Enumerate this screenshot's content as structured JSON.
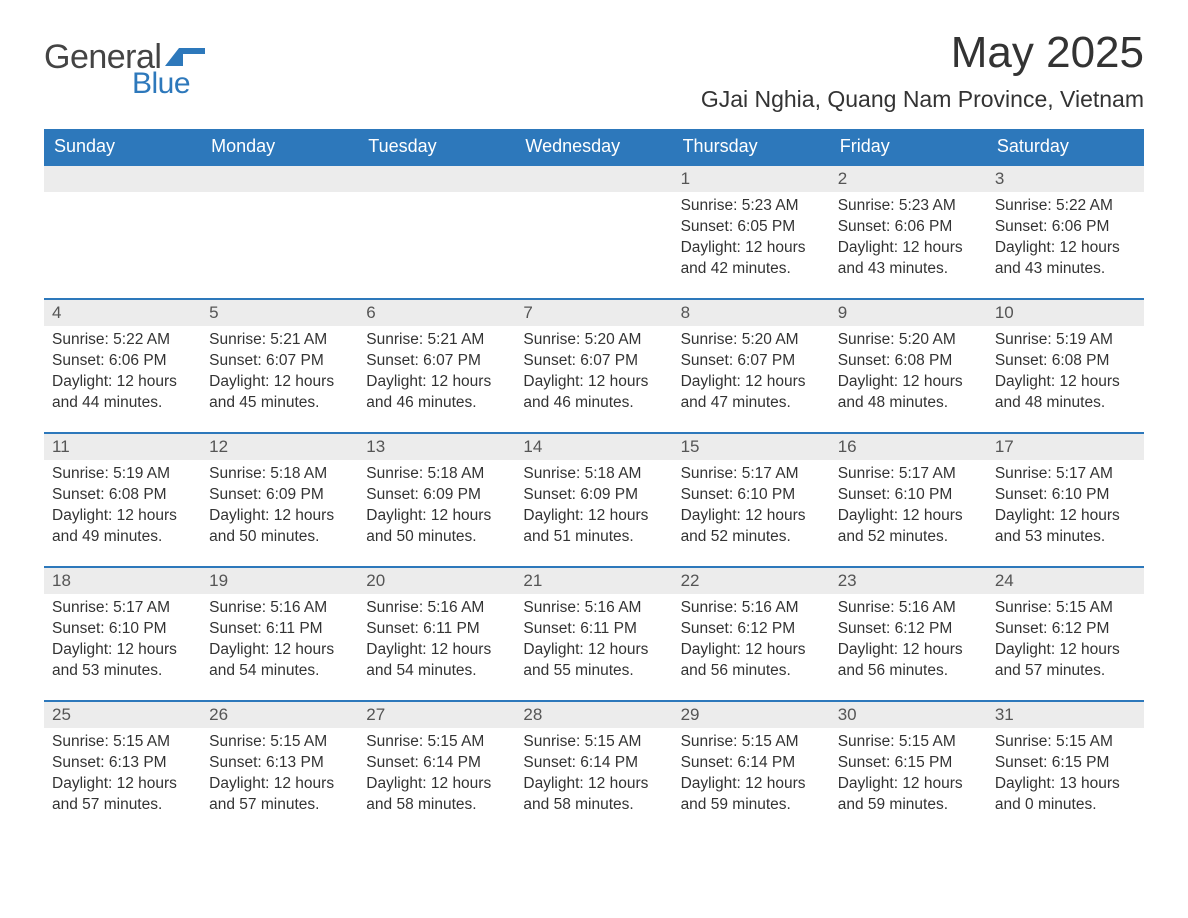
{
  "brand": {
    "word1": "General",
    "word2": "Blue"
  },
  "title": "May 2025",
  "location": "GJai Nghia, Quang Nam Province, Vietnam",
  "colors": {
    "headerBg": "#2d78bb",
    "headerText": "#ffffff",
    "dayStripe": "#ececec",
    "borderAccent": "#2d78bb",
    "bodyText": "#333333",
    "logoBlue": "#2d78bb"
  },
  "columns": [
    "Sunday",
    "Monday",
    "Tuesday",
    "Wednesday",
    "Thursday",
    "Friday",
    "Saturday"
  ],
  "weeks": [
    [
      null,
      null,
      null,
      null,
      {
        "n": "1",
        "sunrise": "5:23 AM",
        "sunset": "6:05 PM",
        "daylight": "12 hours and 42 minutes."
      },
      {
        "n": "2",
        "sunrise": "5:23 AM",
        "sunset": "6:06 PM",
        "daylight": "12 hours and 43 minutes."
      },
      {
        "n": "3",
        "sunrise": "5:22 AM",
        "sunset": "6:06 PM",
        "daylight": "12 hours and 43 minutes."
      }
    ],
    [
      {
        "n": "4",
        "sunrise": "5:22 AM",
        "sunset": "6:06 PM",
        "daylight": "12 hours and 44 minutes."
      },
      {
        "n": "5",
        "sunrise": "5:21 AM",
        "sunset": "6:07 PM",
        "daylight": "12 hours and 45 minutes."
      },
      {
        "n": "6",
        "sunrise": "5:21 AM",
        "sunset": "6:07 PM",
        "daylight": "12 hours and 46 minutes."
      },
      {
        "n": "7",
        "sunrise": "5:20 AM",
        "sunset": "6:07 PM",
        "daylight": "12 hours and 46 minutes."
      },
      {
        "n": "8",
        "sunrise": "5:20 AM",
        "sunset": "6:07 PM",
        "daylight": "12 hours and 47 minutes."
      },
      {
        "n": "9",
        "sunrise": "5:20 AM",
        "sunset": "6:08 PM",
        "daylight": "12 hours and 48 minutes."
      },
      {
        "n": "10",
        "sunrise": "5:19 AM",
        "sunset": "6:08 PM",
        "daylight": "12 hours and 48 minutes."
      }
    ],
    [
      {
        "n": "11",
        "sunrise": "5:19 AM",
        "sunset": "6:08 PM",
        "daylight": "12 hours and 49 minutes."
      },
      {
        "n": "12",
        "sunrise": "5:18 AM",
        "sunset": "6:09 PM",
        "daylight": "12 hours and 50 minutes."
      },
      {
        "n": "13",
        "sunrise": "5:18 AM",
        "sunset": "6:09 PM",
        "daylight": "12 hours and 50 minutes."
      },
      {
        "n": "14",
        "sunrise": "5:18 AM",
        "sunset": "6:09 PM",
        "daylight": "12 hours and 51 minutes."
      },
      {
        "n": "15",
        "sunrise": "5:17 AM",
        "sunset": "6:10 PM",
        "daylight": "12 hours and 52 minutes."
      },
      {
        "n": "16",
        "sunrise": "5:17 AM",
        "sunset": "6:10 PM",
        "daylight": "12 hours and 52 minutes."
      },
      {
        "n": "17",
        "sunrise": "5:17 AM",
        "sunset": "6:10 PM",
        "daylight": "12 hours and 53 minutes."
      }
    ],
    [
      {
        "n": "18",
        "sunrise": "5:17 AM",
        "sunset": "6:10 PM",
        "daylight": "12 hours and 53 minutes."
      },
      {
        "n": "19",
        "sunrise": "5:16 AM",
        "sunset": "6:11 PM",
        "daylight": "12 hours and 54 minutes."
      },
      {
        "n": "20",
        "sunrise": "5:16 AM",
        "sunset": "6:11 PM",
        "daylight": "12 hours and 54 minutes."
      },
      {
        "n": "21",
        "sunrise": "5:16 AM",
        "sunset": "6:11 PM",
        "daylight": "12 hours and 55 minutes."
      },
      {
        "n": "22",
        "sunrise": "5:16 AM",
        "sunset": "6:12 PM",
        "daylight": "12 hours and 56 minutes."
      },
      {
        "n": "23",
        "sunrise": "5:16 AM",
        "sunset": "6:12 PM",
        "daylight": "12 hours and 56 minutes."
      },
      {
        "n": "24",
        "sunrise": "5:15 AM",
        "sunset": "6:12 PM",
        "daylight": "12 hours and 57 minutes."
      }
    ],
    [
      {
        "n": "25",
        "sunrise": "5:15 AM",
        "sunset": "6:13 PM",
        "daylight": "12 hours and 57 minutes."
      },
      {
        "n": "26",
        "sunrise": "5:15 AM",
        "sunset": "6:13 PM",
        "daylight": "12 hours and 57 minutes."
      },
      {
        "n": "27",
        "sunrise": "5:15 AM",
        "sunset": "6:14 PM",
        "daylight": "12 hours and 58 minutes."
      },
      {
        "n": "28",
        "sunrise": "5:15 AM",
        "sunset": "6:14 PM",
        "daylight": "12 hours and 58 minutes."
      },
      {
        "n": "29",
        "sunrise": "5:15 AM",
        "sunset": "6:14 PM",
        "daylight": "12 hours and 59 minutes."
      },
      {
        "n": "30",
        "sunrise": "5:15 AM",
        "sunset": "6:15 PM",
        "daylight": "12 hours and 59 minutes."
      },
      {
        "n": "31",
        "sunrise": "5:15 AM",
        "sunset": "6:15 PM",
        "daylight": "13 hours and 0 minutes."
      }
    ]
  ],
  "labels": {
    "sunrise": "Sunrise: ",
    "sunset": "Sunset: ",
    "daylight": "Daylight: "
  }
}
